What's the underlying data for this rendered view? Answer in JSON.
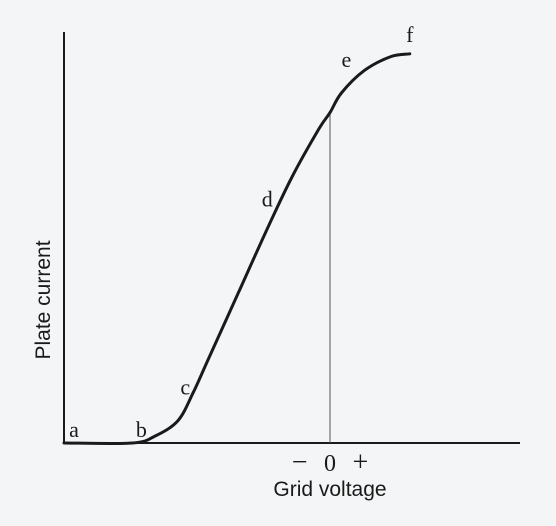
{
  "chart_data": {
    "type": "line",
    "title": "",
    "xlabel": "Grid voltage",
    "ylabel": "Plate current",
    "x_ticks": [
      {
        "label": "−",
        "x": -0.8
      },
      {
        "label": "0",
        "x": 0
      },
      {
        "label": "+",
        "x": 0.8
      }
    ],
    "grid": false,
    "series": [
      {
        "values": [
          {
            "x": -7.0,
            "y": 0.0
          },
          {
            "x": -5.2,
            "y": 0.0
          },
          {
            "x": -4.6,
            "y": 0.25
          },
          {
            "x": -4.0,
            "y": 0.8
          },
          {
            "x": -3.6,
            "y": 1.8
          },
          {
            "x": -3.2,
            "y": 3.0
          },
          {
            "x": -2.4,
            "y": 5.4
          },
          {
            "x": -1.6,
            "y": 7.8
          },
          {
            "x": -1.0,
            "y": 9.5
          },
          {
            "x": -0.3,
            "y": 11.2
          },
          {
            "x": 0.0,
            "y": 11.8
          },
          {
            "x": 0.3,
            "y": 12.5
          },
          {
            "x": 0.9,
            "y": 13.3
          },
          {
            "x": 1.6,
            "y": 13.8
          },
          {
            "x": 2.1,
            "y": 13.9
          }
        ]
      }
    ],
    "point_labels": [
      {
        "label": "a",
        "x": -7.0,
        "y": 0.0
      },
      {
        "label": "b",
        "x": -5.2,
        "y": 0.0
      },
      {
        "label": "c",
        "x": -3.6,
        "y": 1.8
      },
      {
        "label": "d",
        "x": -1.4,
        "y": 8.3
      },
      {
        "label": "e",
        "x": 0.3,
        "y": 12.5
      },
      {
        "label": "f",
        "x": 2.1,
        "y": 13.9
      }
    ],
    "reference_lines": [
      {
        "orientation": "vertical",
        "x": 0
      }
    ],
    "xlim": [
      -7,
      5
    ],
    "ylim": [
      0,
      15
    ],
    "colors": {
      "line": "#1a1a1a",
      "background": "#f4f5f6"
    }
  }
}
